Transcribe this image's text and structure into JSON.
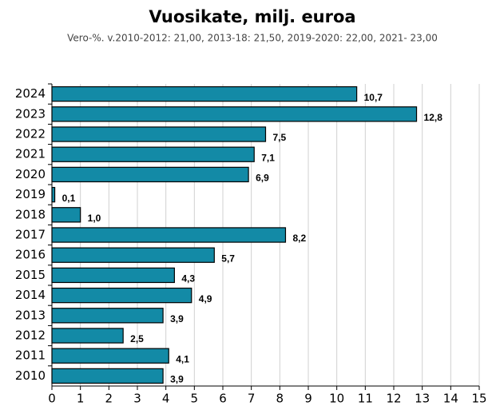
{
  "chart_data": {
    "type": "hbar",
    "title": "Vuosikate, milj. euroa",
    "subtitle": "Vero-%. v.2010-2012: 21,00, 2013-18: 21,50, 2019-2020: 22,00, 2021- 23,00",
    "categories": [
      "2024",
      "2023",
      "2022",
      "2021",
      "2020",
      "2019",
      "2018",
      "2017",
      "2016",
      "2015",
      "2014",
      "2013",
      "2012",
      "2011",
      "2010"
    ],
    "values": [
      10.7,
      12.8,
      7.5,
      7.1,
      6.9,
      0.1,
      1.0,
      8.2,
      5.7,
      4.3,
      4.9,
      3.9,
      2.5,
      4.1,
      3.9
    ],
    "value_labels": [
      "10,7",
      "12,8",
      "7,5",
      "7,1",
      "6,9",
      "0,1",
      "1,0",
      "8,2",
      "5,7",
      "4,3",
      "4,9",
      "3,9",
      "2,5",
      "4,1",
      "3,9"
    ],
    "color": "#138aa6",
    "xlim": [
      0,
      15
    ],
    "xticks": [
      0,
      1,
      2,
      3,
      4,
      5,
      6,
      7,
      8,
      9,
      10,
      11,
      12,
      13,
      14,
      15
    ],
    "grid": true
  }
}
